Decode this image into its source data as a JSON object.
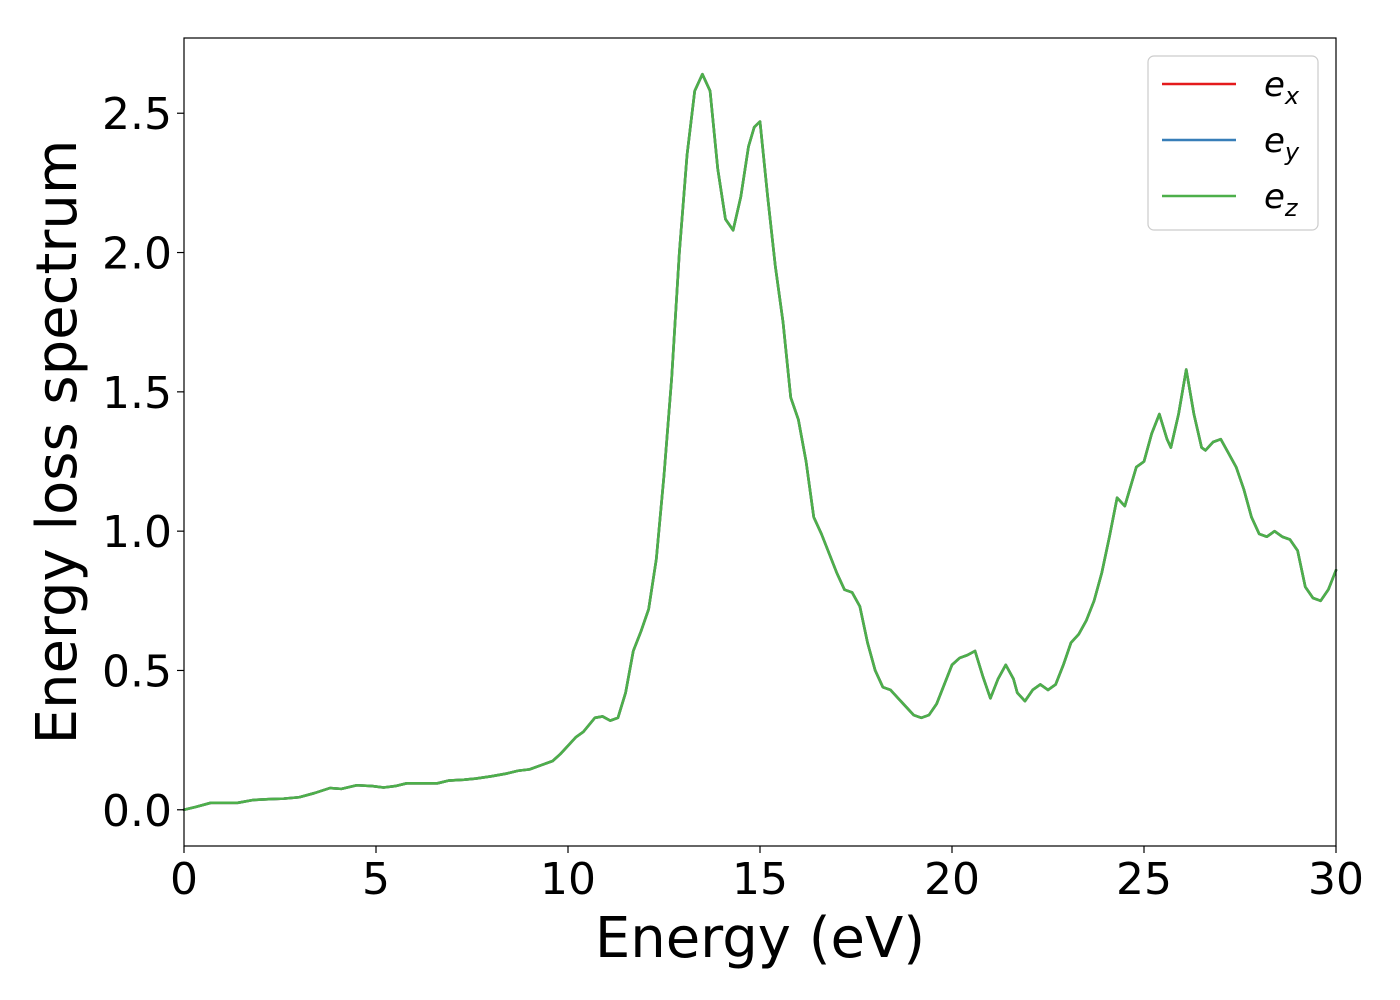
{
  "chart_data": {
    "type": "line",
    "title": "",
    "xlabel": "Energy (eV)",
    "ylabel": "Energy loss spectrum",
    "xlim": [
      0,
      30
    ],
    "ylim": [
      -0.13,
      2.77
    ],
    "xticks": [
      0,
      5,
      10,
      15,
      20,
      25,
      30
    ],
    "xtick_labels": [
      "0",
      "5",
      "10",
      "15",
      "20",
      "25",
      "30"
    ],
    "yticks": [
      0.0,
      0.5,
      1.0,
      1.5,
      2.0,
      2.5
    ],
    "ytick_labels": [
      "0.0",
      "0.5",
      "1.0",
      "1.5",
      "2.0",
      "2.5"
    ],
    "grid": false,
    "legend_position": "top-right",
    "x": [
      0,
      0.3,
      0.7,
      1.0,
      1.4,
      1.8,
      2.2,
      2.6,
      3.0,
      3.4,
      3.8,
      4.1,
      4.5,
      4.9,
      5.2,
      5.5,
      5.8,
      6.2,
      6.6,
      6.9,
      7.3,
      7.6,
      8.0,
      8.4,
      8.7,
      9.0,
      9.3,
      9.6,
      9.8,
      10.0,
      10.2,
      10.4,
      10.7,
      10.9,
      11.1,
      11.3,
      11.5,
      11.7,
      11.9,
      12.1,
      12.3,
      12.5,
      12.7,
      12.9,
      13.1,
      13.3,
      13.5,
      13.7,
      13.9,
      14.1,
      14.3,
      14.5,
      14.7,
      14.85,
      15.0,
      15.2,
      15.4,
      15.6,
      15.8,
      16.0,
      16.2,
      16.4,
      16.6,
      16.8,
      17.0,
      17.2,
      17.4,
      17.6,
      17.8,
      18.0,
      18.2,
      18.4,
      18.6,
      18.8,
      19.0,
      19.2,
      19.4,
      19.6,
      19.8,
      20.0,
      20.2,
      20.4,
      20.6,
      20.8,
      21.0,
      21.2,
      21.4,
      21.6,
      21.7,
      21.9,
      22.1,
      22.3,
      22.5,
      22.7,
      22.9,
      23.1,
      23.3,
      23.5,
      23.7,
      23.9,
      24.1,
      24.3,
      24.5,
      24.8,
      25.0,
      25.2,
      25.4,
      25.6,
      25.7,
      25.9,
      26.1,
      26.3,
      26.5,
      26.6,
      26.8,
      27.0,
      27.2,
      27.4,
      27.6,
      27.8,
      28.0,
      28.2,
      28.4,
      28.6,
      28.8,
      29.0,
      29.2,
      29.4,
      29.6,
      29.8,
      30.0
    ],
    "series": [
      {
        "name": "e_x",
        "color": "#e41a1c",
        "values": [
          0.0,
          0.01,
          0.025,
          0.025,
          0.025,
          0.035,
          0.038,
          0.04,
          0.045,
          0.06,
          0.078,
          0.075,
          0.088,
          0.085,
          0.08,
          0.085,
          0.095,
          0.095,
          0.095,
          0.105,
          0.108,
          0.112,
          0.12,
          0.13,
          0.14,
          0.145,
          0.16,
          0.175,
          0.2,
          0.23,
          0.26,
          0.28,
          0.33,
          0.335,
          0.32,
          0.33,
          0.42,
          0.57,
          0.64,
          0.72,
          0.9,
          1.2,
          1.55,
          2.0,
          2.35,
          2.58,
          2.64,
          2.58,
          2.3,
          2.12,
          2.08,
          2.2,
          2.38,
          2.45,
          2.47,
          2.2,
          1.95,
          1.75,
          1.48,
          1.4,
          1.25,
          1.05,
          0.99,
          0.92,
          0.85,
          0.79,
          0.78,
          0.73,
          0.6,
          0.5,
          0.44,
          0.43,
          0.4,
          0.37,
          0.34,
          0.33,
          0.34,
          0.38,
          0.45,
          0.52,
          0.545,
          0.555,
          0.57,
          0.48,
          0.4,
          0.47,
          0.52,
          0.47,
          0.42,
          0.39,
          0.43,
          0.45,
          0.43,
          0.45,
          0.52,
          0.6,
          0.63,
          0.68,
          0.75,
          0.85,
          0.98,
          1.12,
          1.09,
          1.23,
          1.25,
          1.35,
          1.42,
          1.33,
          1.3,
          1.42,
          1.58,
          1.42,
          1.3,
          1.29,
          1.32,
          1.33,
          1.28,
          1.23,
          1.15,
          1.05,
          0.99,
          0.98,
          1.0,
          0.98,
          0.97,
          0.93,
          0.8,
          0.76,
          0.75,
          0.79,
          0.86
        ]
      },
      {
        "name": "e_y",
        "color": "#377eb8",
        "values": [
          0.0,
          0.01,
          0.025,
          0.025,
          0.025,
          0.035,
          0.038,
          0.04,
          0.045,
          0.06,
          0.078,
          0.075,
          0.088,
          0.085,
          0.08,
          0.085,
          0.095,
          0.095,
          0.095,
          0.105,
          0.108,
          0.112,
          0.12,
          0.13,
          0.14,
          0.145,
          0.16,
          0.175,
          0.2,
          0.23,
          0.26,
          0.28,
          0.33,
          0.335,
          0.32,
          0.33,
          0.42,
          0.57,
          0.64,
          0.72,
          0.9,
          1.2,
          1.55,
          2.0,
          2.35,
          2.58,
          2.64,
          2.58,
          2.3,
          2.12,
          2.08,
          2.2,
          2.38,
          2.45,
          2.47,
          2.2,
          1.95,
          1.75,
          1.48,
          1.4,
          1.25,
          1.05,
          0.99,
          0.92,
          0.85,
          0.79,
          0.78,
          0.73,
          0.6,
          0.5,
          0.44,
          0.43,
          0.4,
          0.37,
          0.34,
          0.33,
          0.34,
          0.38,
          0.45,
          0.52,
          0.545,
          0.555,
          0.57,
          0.48,
          0.4,
          0.47,
          0.52,
          0.47,
          0.42,
          0.39,
          0.43,
          0.45,
          0.43,
          0.45,
          0.52,
          0.6,
          0.63,
          0.68,
          0.75,
          0.85,
          0.98,
          1.12,
          1.09,
          1.23,
          1.25,
          1.35,
          1.42,
          1.33,
          1.3,
          1.42,
          1.58,
          1.42,
          1.3,
          1.29,
          1.32,
          1.33,
          1.28,
          1.23,
          1.15,
          1.05,
          0.99,
          0.98,
          1.0,
          0.98,
          0.97,
          0.93,
          0.8,
          0.76,
          0.75,
          0.79,
          0.86
        ]
      },
      {
        "name": "e_z",
        "color": "#4daf4a",
        "values": [
          0.0,
          0.01,
          0.025,
          0.025,
          0.025,
          0.035,
          0.038,
          0.04,
          0.045,
          0.06,
          0.078,
          0.075,
          0.088,
          0.085,
          0.08,
          0.085,
          0.095,
          0.095,
          0.095,
          0.105,
          0.108,
          0.112,
          0.12,
          0.13,
          0.14,
          0.145,
          0.16,
          0.175,
          0.2,
          0.23,
          0.26,
          0.28,
          0.33,
          0.335,
          0.32,
          0.33,
          0.42,
          0.57,
          0.64,
          0.72,
          0.9,
          1.2,
          1.55,
          2.0,
          2.35,
          2.58,
          2.64,
          2.58,
          2.3,
          2.12,
          2.08,
          2.2,
          2.38,
          2.45,
          2.47,
          2.2,
          1.95,
          1.75,
          1.48,
          1.4,
          1.25,
          1.05,
          0.99,
          0.92,
          0.85,
          0.79,
          0.78,
          0.73,
          0.6,
          0.5,
          0.44,
          0.43,
          0.4,
          0.37,
          0.34,
          0.33,
          0.34,
          0.38,
          0.45,
          0.52,
          0.545,
          0.555,
          0.57,
          0.48,
          0.4,
          0.47,
          0.52,
          0.47,
          0.42,
          0.39,
          0.43,
          0.45,
          0.43,
          0.45,
          0.52,
          0.6,
          0.63,
          0.68,
          0.75,
          0.85,
          0.98,
          1.12,
          1.09,
          1.23,
          1.25,
          1.35,
          1.42,
          1.33,
          1.3,
          1.42,
          1.58,
          1.42,
          1.3,
          1.29,
          1.32,
          1.33,
          1.28,
          1.23,
          1.15,
          1.05,
          0.99,
          0.98,
          1.0,
          0.98,
          0.97,
          0.93,
          0.8,
          0.76,
          0.75,
          0.79,
          0.86
        ]
      }
    ],
    "legend": [
      {
        "base": "e",
        "sub": "x",
        "color": "#e41a1c"
      },
      {
        "base": "e",
        "sub": "y",
        "color": "#377eb8"
      },
      {
        "base": "e",
        "sub": "z",
        "color": "#4daf4a"
      }
    ]
  }
}
